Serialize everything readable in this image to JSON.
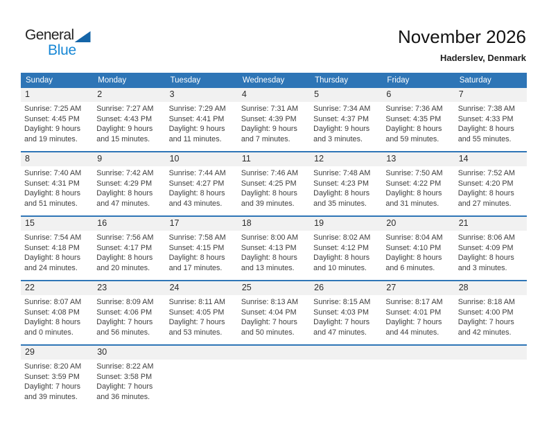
{
  "logo": {
    "line1": "General",
    "line2": "Blue"
  },
  "header": {
    "title": "November 2026",
    "subtitle": "Haderslev, Denmark"
  },
  "colors": {
    "accent": "#2E75B6",
    "band": "#F1F1F1",
    "logo_blue": "#1787D5",
    "logo_triangle": "#1565A8"
  },
  "weekdays": [
    "Sunday",
    "Monday",
    "Tuesday",
    "Wednesday",
    "Thursday",
    "Friday",
    "Saturday"
  ],
  "weeks": [
    [
      {
        "day": "1",
        "lines": [
          "Sunrise: 7:25 AM",
          "Sunset: 4:45 PM",
          "Daylight: 9 hours",
          "and 19 minutes."
        ]
      },
      {
        "day": "2",
        "lines": [
          "Sunrise: 7:27 AM",
          "Sunset: 4:43 PM",
          "Daylight: 9 hours",
          "and 15 minutes."
        ]
      },
      {
        "day": "3",
        "lines": [
          "Sunrise: 7:29 AM",
          "Sunset: 4:41 PM",
          "Daylight: 9 hours",
          "and 11 minutes."
        ]
      },
      {
        "day": "4",
        "lines": [
          "Sunrise: 7:31 AM",
          "Sunset: 4:39 PM",
          "Daylight: 9 hours",
          "and 7 minutes."
        ]
      },
      {
        "day": "5",
        "lines": [
          "Sunrise: 7:34 AM",
          "Sunset: 4:37 PM",
          "Daylight: 9 hours",
          "and 3 minutes."
        ]
      },
      {
        "day": "6",
        "lines": [
          "Sunrise: 7:36 AM",
          "Sunset: 4:35 PM",
          "Daylight: 8 hours",
          "and 59 minutes."
        ]
      },
      {
        "day": "7",
        "lines": [
          "Sunrise: 7:38 AM",
          "Sunset: 4:33 PM",
          "Daylight: 8 hours",
          "and 55 minutes."
        ]
      }
    ],
    [
      {
        "day": "8",
        "lines": [
          "Sunrise: 7:40 AM",
          "Sunset: 4:31 PM",
          "Daylight: 8 hours",
          "and 51 minutes."
        ]
      },
      {
        "day": "9",
        "lines": [
          "Sunrise: 7:42 AM",
          "Sunset: 4:29 PM",
          "Daylight: 8 hours",
          "and 47 minutes."
        ]
      },
      {
        "day": "10",
        "lines": [
          "Sunrise: 7:44 AM",
          "Sunset: 4:27 PM",
          "Daylight: 8 hours",
          "and 43 minutes."
        ]
      },
      {
        "day": "11",
        "lines": [
          "Sunrise: 7:46 AM",
          "Sunset: 4:25 PM",
          "Daylight: 8 hours",
          "and 39 minutes."
        ]
      },
      {
        "day": "12",
        "lines": [
          "Sunrise: 7:48 AM",
          "Sunset: 4:23 PM",
          "Daylight: 8 hours",
          "and 35 minutes."
        ]
      },
      {
        "day": "13",
        "lines": [
          "Sunrise: 7:50 AM",
          "Sunset: 4:22 PM",
          "Daylight: 8 hours",
          "and 31 minutes."
        ]
      },
      {
        "day": "14",
        "lines": [
          "Sunrise: 7:52 AM",
          "Sunset: 4:20 PM",
          "Daylight: 8 hours",
          "and 27 minutes."
        ]
      }
    ],
    [
      {
        "day": "15",
        "lines": [
          "Sunrise: 7:54 AM",
          "Sunset: 4:18 PM",
          "Daylight: 8 hours",
          "and 24 minutes."
        ]
      },
      {
        "day": "16",
        "lines": [
          "Sunrise: 7:56 AM",
          "Sunset: 4:17 PM",
          "Daylight: 8 hours",
          "and 20 minutes."
        ]
      },
      {
        "day": "17",
        "lines": [
          "Sunrise: 7:58 AM",
          "Sunset: 4:15 PM",
          "Daylight: 8 hours",
          "and 17 minutes."
        ]
      },
      {
        "day": "18",
        "lines": [
          "Sunrise: 8:00 AM",
          "Sunset: 4:13 PM",
          "Daylight: 8 hours",
          "and 13 minutes."
        ]
      },
      {
        "day": "19",
        "lines": [
          "Sunrise: 8:02 AM",
          "Sunset: 4:12 PM",
          "Daylight: 8 hours",
          "and 10 minutes."
        ]
      },
      {
        "day": "20",
        "lines": [
          "Sunrise: 8:04 AM",
          "Sunset: 4:10 PM",
          "Daylight: 8 hours",
          "and 6 minutes."
        ]
      },
      {
        "day": "21",
        "lines": [
          "Sunrise: 8:06 AM",
          "Sunset: 4:09 PM",
          "Daylight: 8 hours",
          "and 3 minutes."
        ]
      }
    ],
    [
      {
        "day": "22",
        "lines": [
          "Sunrise: 8:07 AM",
          "Sunset: 4:08 PM",
          "Daylight: 8 hours",
          "and 0 minutes."
        ]
      },
      {
        "day": "23",
        "lines": [
          "Sunrise: 8:09 AM",
          "Sunset: 4:06 PM",
          "Daylight: 7 hours",
          "and 56 minutes."
        ]
      },
      {
        "day": "24",
        "lines": [
          "Sunrise: 8:11 AM",
          "Sunset: 4:05 PM",
          "Daylight: 7 hours",
          "and 53 minutes."
        ]
      },
      {
        "day": "25",
        "lines": [
          "Sunrise: 8:13 AM",
          "Sunset: 4:04 PM",
          "Daylight: 7 hours",
          "and 50 minutes."
        ]
      },
      {
        "day": "26",
        "lines": [
          "Sunrise: 8:15 AM",
          "Sunset: 4:03 PM",
          "Daylight: 7 hours",
          "and 47 minutes."
        ]
      },
      {
        "day": "27",
        "lines": [
          "Sunrise: 8:17 AM",
          "Sunset: 4:01 PM",
          "Daylight: 7 hours",
          "and 44 minutes."
        ]
      },
      {
        "day": "28",
        "lines": [
          "Sunrise: 8:18 AM",
          "Sunset: 4:00 PM",
          "Daylight: 7 hours",
          "and 42 minutes."
        ]
      }
    ],
    [
      {
        "day": "29",
        "lines": [
          "Sunrise: 8:20 AM",
          "Sunset: 3:59 PM",
          "Daylight: 7 hours",
          "and 39 minutes."
        ]
      },
      {
        "day": "30",
        "lines": [
          "Sunrise: 8:22 AM",
          "Sunset: 3:58 PM",
          "Daylight: 7 hours",
          "and 36 minutes."
        ]
      },
      {
        "day": "",
        "lines": []
      },
      {
        "day": "",
        "lines": []
      },
      {
        "day": "",
        "lines": []
      },
      {
        "day": "",
        "lines": []
      },
      {
        "day": "",
        "lines": []
      }
    ]
  ]
}
